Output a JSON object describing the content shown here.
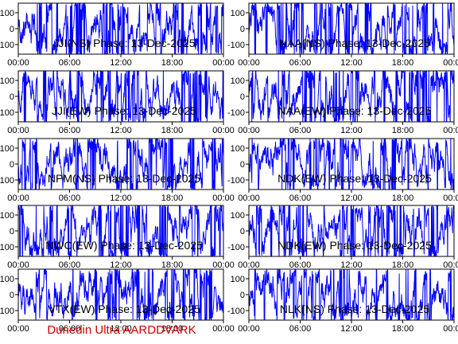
{
  "footer": "Dunedin Ultra AARDDVARK",
  "colors": {
    "trace": "#0000ff",
    "axes": "#000000",
    "footer": "#cc0000"
  },
  "chart_data": [
    {
      "type": "line",
      "title": "JJI(NS) Phase: 13-Dec-2025",
      "ylim": [
        -160,
        160
      ],
      "yticks": [
        100,
        0,
        -100
      ],
      "xticks": [
        "00:00",
        "06:00",
        "12:00",
        "18:00",
        "00:00"
      ]
    },
    {
      "type": "line",
      "title": "NAA(NS) Phase: 13-Dec-2025",
      "ylim": [
        -160,
        160
      ],
      "yticks": [
        100,
        0,
        -100
      ],
      "xticks": [
        "00:00",
        "06:00",
        "12:00",
        "18:00",
        "00:00"
      ]
    },
    {
      "type": "line",
      "title": "JJI(EW) Phase: 13-Dec-2025",
      "ylim": [
        -160,
        160
      ],
      "yticks": [
        100,
        0,
        -100
      ],
      "xticks": [
        "00:00",
        "06:00",
        "12:00",
        "18:00",
        "00:00"
      ]
    },
    {
      "type": "line",
      "title": "NAA(EW) Phase: 13-Dec-2025",
      "ylim": [
        -160,
        160
      ],
      "yticks": [
        100,
        0,
        -100
      ],
      "xticks": [
        "00:00",
        "06:00",
        "12:00",
        "18:00",
        "00:00"
      ]
    },
    {
      "type": "line",
      "title": "NPM(NS) Phase: 13-Dec-2025",
      "ylim": [
        -160,
        160
      ],
      "yticks": [
        100,
        0,
        -100
      ],
      "xticks": [
        "00:00",
        "06:00",
        "12:00",
        "18:00",
        "00:00"
      ]
    },
    {
      "type": "line",
      "title": "NDK(EW) Phase: 13-Dec-2025",
      "ylim": [
        -160,
        160
      ],
      "yticks": [
        100,
        0,
        -100
      ],
      "xticks": [
        "00:00",
        "06:00",
        "12:00",
        "18:00",
        "00:00"
      ]
    },
    {
      "type": "line",
      "title": "NWC(EW) Phase: 13-Dec-2025",
      "ylim": [
        -160,
        160
      ],
      "yticks": [
        100,
        0,
        -100
      ],
      "xticks": [
        "00:00",
        "06:00",
        "12:00",
        "18:00",
        "00:00"
      ]
    },
    {
      "type": "line",
      "title": "NDK(EW) Phase: 13-Dec-2025",
      "ylim": [
        -160,
        160
      ],
      "yticks": [
        100,
        0,
        -100
      ],
      "xticks": [
        "00:00",
        "06:00",
        "12:00",
        "18:00",
        "00:00"
      ]
    },
    {
      "type": "line",
      "title": "VTX(EW) Phase: 13-Dec-2025",
      "ylim": [
        -160,
        160
      ],
      "yticks": [
        100,
        0,
        -100
      ],
      "xticks": [
        "00:00",
        "06:00",
        "12:00",
        "18:00",
        "00:00"
      ]
    },
    {
      "type": "line",
      "title": "NLK(NS) Phase: 13-Dec-2025",
      "ylim": [
        -160,
        160
      ],
      "yticks": [
        100,
        0,
        -100
      ],
      "xticks": [
        "00:00",
        "06:00",
        "12:00",
        "18:00",
        "00:00"
      ]
    }
  ]
}
